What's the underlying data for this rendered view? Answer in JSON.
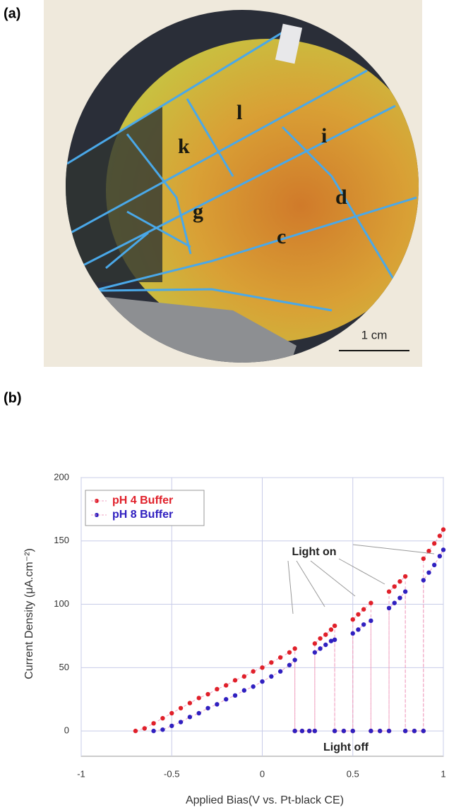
{
  "panel_labels": [
    "(a)",
    "(b)"
  ],
  "photo": {
    "regions": [
      "l",
      "k",
      "i",
      "g",
      "d",
      "c"
    ],
    "scale_bar": "1 cm"
  },
  "chart_data": {
    "type": "scatter",
    "x_label": "Applied Bias(V vs. Pt-black CE)",
    "y_label": "Current Density (μA.cm⁻²)",
    "annotations": [
      "Light on",
      "Light off"
    ],
    "xlim": [
      -1,
      1
    ],
    "xticks": [
      -1,
      -0.5,
      0,
      0.5,
      1
    ],
    "ylim": [
      -20,
      200
    ],
    "yticks": [
      0,
      50,
      100,
      150,
      200
    ],
    "grid": true,
    "legend": "upper left",
    "series": [
      {
        "name": "pH 4 Buffer",
        "color": "#e0202a",
        "x": [
          -0.7,
          -0.65,
          -0.6,
          -0.55,
          -0.5,
          -0.45,
          -0.4,
          -0.35,
          -0.3,
          -0.25,
          -0.2,
          -0.15,
          -0.1,
          -0.05,
          0,
          0.05,
          0.1,
          0.15,
          0.18,
          0.18,
          0.22,
          0.26,
          0.29,
          0.29,
          0.32,
          0.35,
          0.38,
          0.4,
          0.4,
          0.45,
          0.5,
          0.5,
          0.53,
          0.56,
          0.6,
          0.6,
          0.65,
          0.7,
          0.7,
          0.73,
          0.76,
          0.79,
          0.79,
          0.84,
          0.89,
          0.89,
          0.92,
          0.95,
          0.98,
          1
        ],
        "values": [
          0,
          2,
          6,
          10,
          14,
          18,
          22,
          26,
          29,
          33,
          36,
          40,
          43,
          47,
          50,
          54,
          58,
          62,
          65,
          0,
          0,
          0,
          0,
          69,
          73,
          76,
          80,
          83,
          0,
          0,
          0,
          88,
          92,
          96,
          101,
          0,
          0,
          0,
          110,
          114,
          118,
          122,
          0,
          0,
          0,
          136,
          142,
          148,
          154,
          159
        ]
      },
      {
        "name": "pH 8 Buffer",
        "color": "#3020c0",
        "x": [
          -0.6,
          -0.55,
          -0.5,
          -0.45,
          -0.4,
          -0.35,
          -0.3,
          -0.25,
          -0.2,
          -0.15,
          -0.1,
          -0.05,
          0,
          0.05,
          0.1,
          0.15,
          0.18,
          0.18,
          0.22,
          0.26,
          0.29,
          0.29,
          0.32,
          0.35,
          0.38,
          0.4,
          0.4,
          0.45,
          0.5,
          0.5,
          0.53,
          0.56,
          0.6,
          0.6,
          0.65,
          0.7,
          0.7,
          0.73,
          0.76,
          0.79,
          0.79,
          0.84,
          0.89,
          0.89,
          0.92,
          0.95,
          0.98,
          1
        ],
        "values": [
          0,
          1,
          4,
          7,
          11,
          14,
          18,
          21,
          25,
          28,
          32,
          35,
          39,
          43,
          47,
          52,
          56,
          0,
          0,
          0,
          0,
          62,
          65,
          68,
          71,
          72,
          0,
          0,
          0,
          77,
          80,
          84,
          87,
          0,
          0,
          0,
          97,
          101,
          105,
          110,
          0,
          0,
          0,
          119,
          125,
          131,
          138,
          143
        ]
      }
    ]
  }
}
